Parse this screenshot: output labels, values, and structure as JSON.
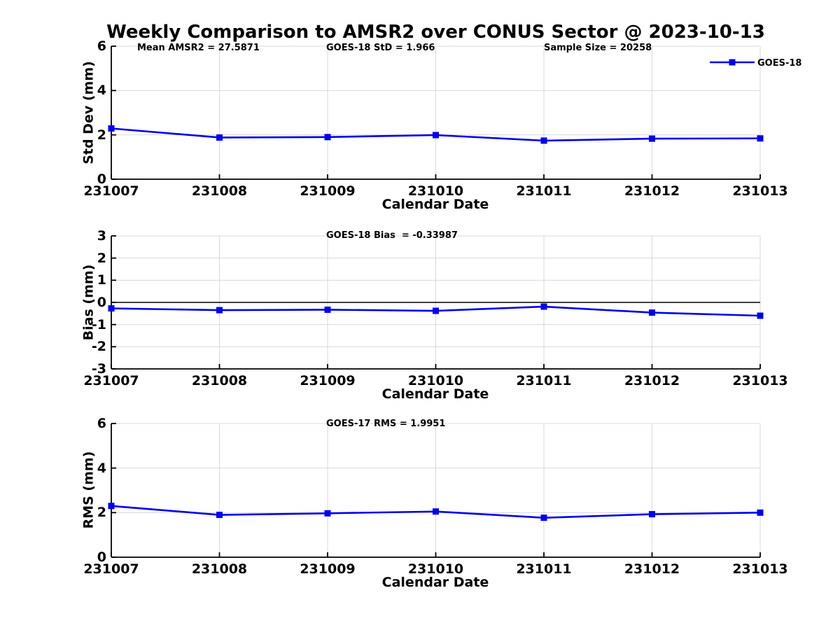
{
  "page": {
    "title": "Weekly Comparison to AMSR2 over CONUS Sector @ 2023-10-13"
  },
  "chart_data": [
    {
      "type": "line",
      "categories": [
        "231007",
        "231008",
        "231009",
        "231010",
        "231011",
        "231012",
        "231013"
      ],
      "series": [
        {
          "name": "GOES-18",
          "color": "#0000ee",
          "values": [
            2.29,
            1.88,
            1.9,
            1.99,
            1.74,
            1.83,
            1.84
          ]
        }
      ],
      "annotations": [
        {
          "text": "Mean AMSR2 = 27.5871"
        },
        {
          "text": "GOES-18 StD = 1.966"
        },
        {
          "text": "Sample Size = 20258"
        }
      ],
      "xlabel": "Calendar Date",
      "ylabel": "Std Dev (mm)",
      "ylim": [
        0,
        6
      ],
      "yticks": [
        0,
        2,
        4,
        6
      ],
      "grid": true,
      "zero_line": false,
      "legend": {
        "label": "GOES-18",
        "position": "top-right"
      }
    },
    {
      "type": "line",
      "categories": [
        "231007",
        "231008",
        "231009",
        "231010",
        "231011",
        "231012",
        "231013"
      ],
      "series": [
        {
          "name": "GOES-18",
          "color": "#0000ee",
          "values": [
            -0.27,
            -0.35,
            -0.33,
            -0.38,
            -0.19,
            -0.46,
            -0.6
          ]
        }
      ],
      "annotations": [
        {
          "text": "GOES-18 Bias  = -0.33987"
        }
      ],
      "xlabel": "Calendar Date",
      "ylabel": "Bias (mm)",
      "ylim": [
        -3,
        3
      ],
      "yticks": [
        -3,
        -2,
        -1,
        0,
        1,
        2,
        3
      ],
      "grid": true,
      "zero_line": true
    },
    {
      "type": "line",
      "categories": [
        "231007",
        "231008",
        "231009",
        "231010",
        "231011",
        "231012",
        "231013"
      ],
      "series": [
        {
          "name": "GOES-18",
          "color": "#0000ee",
          "values": [
            2.3,
            1.9,
            1.97,
            2.05,
            1.77,
            1.93,
            2.0
          ]
        }
      ],
      "annotations": [
        {
          "text": "GOES-17 RMS = 1.9951"
        }
      ],
      "xlabel": "Calendar Date",
      "ylabel": "RMS (mm)",
      "ylim": [
        0,
        6
      ],
      "yticks": [
        0,
        2,
        4,
        6
      ],
      "grid": true,
      "zero_line": false
    }
  ],
  "style": {
    "line_color": "#0000ee",
    "grid_color": "#d8d8d8",
    "axis_color": "#000000"
  }
}
